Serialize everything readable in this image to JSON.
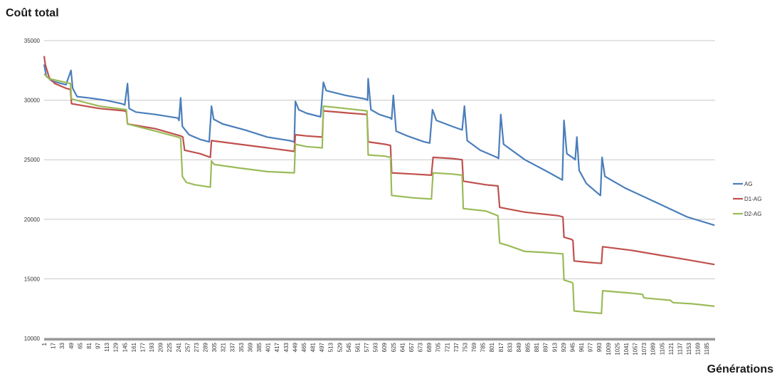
{
  "chart_data": {
    "type": "line",
    "ylabel": "Coût total",
    "xlabel": "Générations",
    "ylim": [
      10000,
      35000
    ],
    "yticks": [
      10000,
      15000,
      20000,
      25000,
      30000,
      35000
    ],
    "xlim": [
      1,
      1200
    ],
    "xticks": [
      1,
      17,
      33,
      49,
      65,
      81,
      97,
      113,
      129,
      145,
      161,
      177,
      193,
      209,
      225,
      241,
      257,
      273,
      289,
      305,
      321,
      337,
      353,
      369,
      385,
      401,
      417,
      433,
      449,
      465,
      481,
      497,
      513,
      529,
      545,
      561,
      577,
      593,
      609,
      625,
      641,
      657,
      673,
      689,
      705,
      721,
      737,
      753,
      769,
      785,
      801,
      817,
      833,
      849,
      865,
      881,
      897,
      913,
      929,
      945,
      961,
      977,
      993,
      1009,
      1025,
      1041,
      1057,
      1073,
      1089,
      1105,
      1121,
      1137,
      1153,
      1169,
      1185
    ],
    "grid": true,
    "legend_position": "right",
    "series": [
      {
        "name": "AG",
        "color": "#4a7ebb",
        "points": [
          [
            1,
            33000
          ],
          [
            5,
            32000
          ],
          [
            15,
            31600
          ],
          [
            40,
            31300
          ],
          [
            49,
            32500
          ],
          [
            52,
            31000
          ],
          [
            60,
            30300
          ],
          [
            80,
            30200
          ],
          [
            110,
            30000
          ],
          [
            140,
            29700
          ],
          [
            145,
            29600
          ],
          [
            150,
            31400
          ],
          [
            153,
            29300
          ],
          [
            165,
            29000
          ],
          [
            200,
            28800
          ],
          [
            240,
            28500
          ],
          [
            242,
            28300
          ],
          [
            245,
            30200
          ],
          [
            248,
            27800
          ],
          [
            260,
            27100
          ],
          [
            280,
            26700
          ],
          [
            296,
            26500
          ],
          [
            300,
            29500
          ],
          [
            304,
            28400
          ],
          [
            320,
            28000
          ],
          [
            360,
            27500
          ],
          [
            400,
            26900
          ],
          [
            440,
            26600
          ],
          [
            448,
            26500
          ],
          [
            450,
            29900
          ],
          [
            456,
            29200
          ],
          [
            470,
            28900
          ],
          [
            495,
            28600
          ],
          [
            500,
            31500
          ],
          [
            505,
            30800
          ],
          [
            540,
            30400
          ],
          [
            575,
            30100
          ],
          [
            579,
            30000
          ],
          [
            580,
            31800
          ],
          [
            585,
            29200
          ],
          [
            600,
            28800
          ],
          [
            620,
            28500
          ],
          [
            622,
            28400
          ],
          [
            625,
            30400
          ],
          [
            630,
            27400
          ],
          [
            650,
            27000
          ],
          [
            680,
            26500
          ],
          [
            690,
            26400
          ],
          [
            695,
            29200
          ],
          [
            702,
            28300
          ],
          [
            730,
            27800
          ],
          [
            748,
            27500
          ],
          [
            752,
            29500
          ],
          [
            757,
            26600
          ],
          [
            780,
            25800
          ],
          [
            810,
            25200
          ],
          [
            813,
            25100
          ],
          [
            817,
            28800
          ],
          [
            822,
            26300
          ],
          [
            860,
            25000
          ],
          [
            900,
            24000
          ],
          [
            927,
            23300
          ],
          [
            930,
            28300
          ],
          [
            935,
            25500
          ],
          [
            945,
            25200
          ],
          [
            950,
            25000
          ],
          [
            953,
            26900
          ],
          [
            957,
            24100
          ],
          [
            970,
            23000
          ],
          [
            995,
            22000
          ],
          [
            998,
            25200
          ],
          [
            1003,
            23600
          ],
          [
            1040,
            22600
          ],
          [
            1100,
            21300
          ],
          [
            1150,
            20200
          ],
          [
            1199,
            19500
          ]
        ]
      },
      {
        "name": "D1-AG",
        "color": "#c0504d",
        "points": [
          [
            1,
            33700
          ],
          [
            3,
            33000
          ],
          [
            10,
            31900
          ],
          [
            20,
            31400
          ],
          [
            40,
            31000
          ],
          [
            48,
            30900
          ],
          [
            50,
            29700
          ],
          [
            100,
            29300
          ],
          [
            145,
            29100
          ],
          [
            148,
            29000
          ],
          [
            150,
            28000
          ],
          [
            200,
            27600
          ],
          [
            245,
            27000
          ],
          [
            249,
            26900
          ],
          [
            252,
            25800
          ],
          [
            280,
            25500
          ],
          [
            298,
            25200
          ],
          [
            300,
            26600
          ],
          [
            350,
            26300
          ],
          [
            400,
            26000
          ],
          [
            448,
            25700
          ],
          [
            450,
            27100
          ],
          [
            470,
            27000
          ],
          [
            498,
            26900
          ],
          [
            500,
            29100
          ],
          [
            550,
            28900
          ],
          [
            578,
            28800
          ],
          [
            580,
            26500
          ],
          [
            610,
            26300
          ],
          [
            620,
            26200
          ],
          [
            622,
            23900
          ],
          [
            660,
            23800
          ],
          [
            693,
            23700
          ],
          [
            696,
            25200
          ],
          [
            730,
            25100
          ],
          [
            748,
            25000
          ],
          [
            750,
            23200
          ],
          [
            790,
            22900
          ],
          [
            812,
            22800
          ],
          [
            815,
            21000
          ],
          [
            860,
            20600
          ],
          [
            920,
            20300
          ],
          [
            928,
            20200
          ],
          [
            930,
            18500
          ],
          [
            944,
            18300
          ],
          [
            946,
            18200
          ],
          [
            948,
            16500
          ],
          [
            970,
            16400
          ],
          [
            997,
            16300
          ],
          [
            999,
            17700
          ],
          [
            1050,
            17400
          ],
          [
            1100,
            17000
          ],
          [
            1150,
            16600
          ],
          [
            1199,
            16200
          ]
        ]
      },
      {
        "name": "D2-AG",
        "color": "#9bbb59",
        "points": [
          [
            1,
            32200
          ],
          [
            10,
            31800
          ],
          [
            48,
            31400
          ],
          [
            50,
            30100
          ],
          [
            100,
            29500
          ],
          [
            148,
            29200
          ],
          [
            150,
            28000
          ],
          [
            200,
            27400
          ],
          [
            240,
            26900
          ],
          [
            245,
            26800
          ],
          [
            248,
            23600
          ],
          [
            255,
            23100
          ],
          [
            270,
            22900
          ],
          [
            298,
            22700
          ],
          [
            300,
            24900
          ],
          [
            305,
            24600
          ],
          [
            350,
            24300
          ],
          [
            400,
            24000
          ],
          [
            448,
            23900
          ],
          [
            450,
            26300
          ],
          [
            470,
            26100
          ],
          [
            498,
            26000
          ],
          [
            500,
            29500
          ],
          [
            540,
            29300
          ],
          [
            578,
            29100
          ],
          [
            580,
            25400
          ],
          [
            610,
            25300
          ],
          [
            620,
            25200
          ],
          [
            622,
            22000
          ],
          [
            660,
            21800
          ],
          [
            693,
            21700
          ],
          [
            696,
            23900
          ],
          [
            730,
            23800
          ],
          [
            748,
            23700
          ],
          [
            750,
            20900
          ],
          [
            790,
            20700
          ],
          [
            812,
            20300
          ],
          [
            815,
            18000
          ],
          [
            830,
            17800
          ],
          [
            860,
            17300
          ],
          [
            900,
            17200
          ],
          [
            928,
            17100
          ],
          [
            930,
            14900
          ],
          [
            944,
            14700
          ],
          [
            946,
            14600
          ],
          [
            948,
            12300
          ],
          [
            970,
            12200
          ],
          [
            997,
            12100
          ],
          [
            999,
            14000
          ],
          [
            1050,
            13800
          ],
          [
            1070,
            13700
          ],
          [
            1073,
            13400
          ],
          [
            1120,
            13200
          ],
          [
            1125,
            13000
          ],
          [
            1160,
            12900
          ],
          [
            1199,
            12700
          ]
        ]
      }
    ]
  }
}
